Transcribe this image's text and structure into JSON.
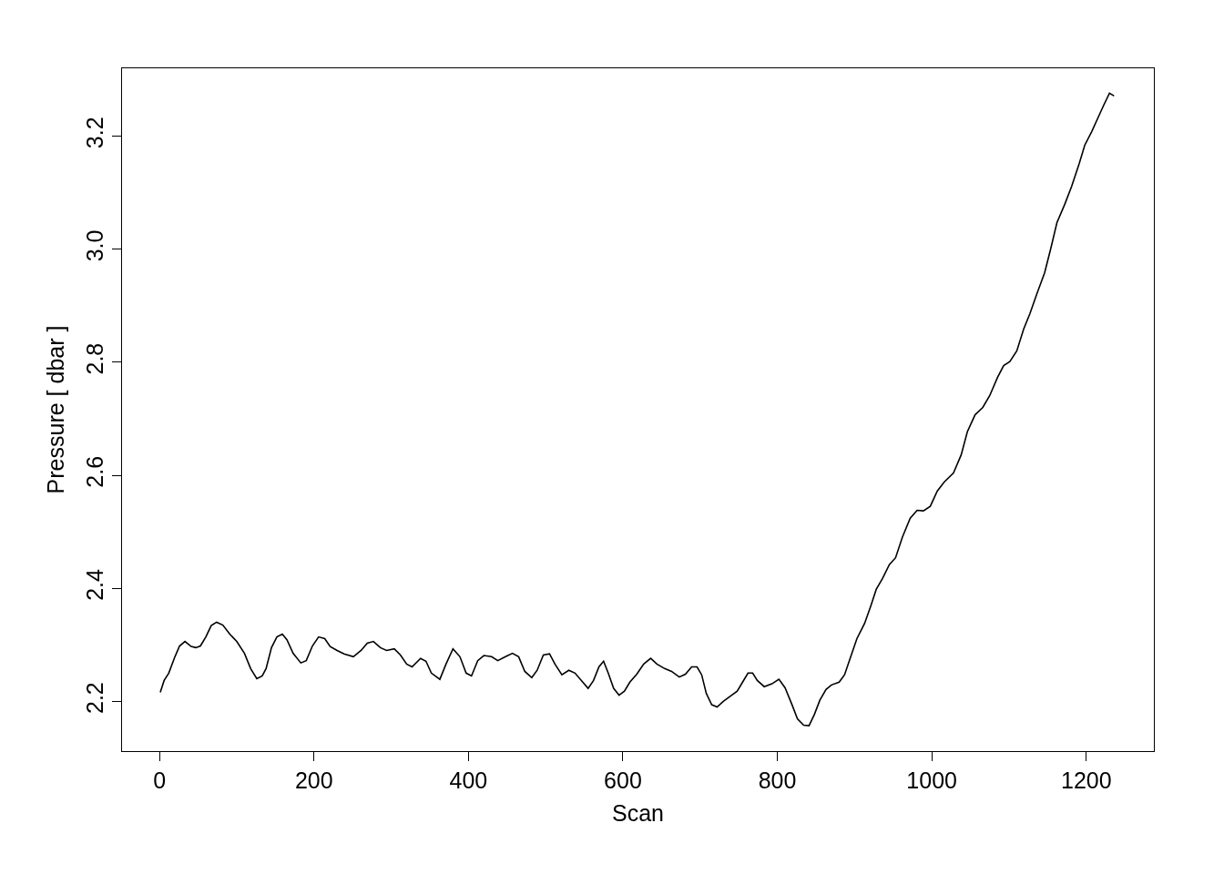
{
  "chart_data": {
    "type": "line",
    "xlabel": "Scan",
    "ylabel": "Pressure [ dbar ]",
    "xlim": [
      -48.5,
      1287.5
    ],
    "ylim": [
      2.112,
      3.32
    ],
    "xticks": [
      0,
      200,
      400,
      600,
      800,
      1000,
      1200
    ],
    "yticks": [
      2.2,
      2.4,
      2.6,
      2.8,
      {
        "value": 3,
        "label": "3.0"
      },
      3.2
    ],
    "marker": "none",
    "line_style": "solid",
    "series": [
      {
        "color": "#000000",
        "x": [
          1,
          6,
          12,
          20,
          26,
          33,
          41,
          47,
          53,
          60,
          67,
          74,
          82,
          91,
          100,
          110,
          118,
          126,
          133,
          138,
          145,
          152,
          159,
          165,
          173,
          183,
          190,
          198,
          206,
          214,
          221,
          230,
          239,
          251,
          261,
          269,
          277,
          286,
          294,
          304,
          312,
          320,
          327,
          338,
          345,
          352,
          363,
          371,
          380,
          389,
          397,
          404,
          412,
          420,
          430,
          438,
          448,
          457,
          465,
          473,
          482,
          489,
          497,
          505,
          512,
          521,
          530,
          538,
          548,
          555,
          562,
          569,
          575,
          581,
          588,
          595,
          602,
          609,
          618,
          627,
          636,
          644,
          654,
          663,
          673,
          681,
          689,
          696,
          702,
          708,
          715,
          722,
          730,
          740,
          748,
          755,
          762,
          768,
          774,
          783,
          793,
          802,
          810,
          819,
          826,
          834,
          841,
          848,
          855,
          863,
          870,
          880,
          887,
          895,
          903,
          913,
          921,
          928,
          936,
          945,
          953,
          962,
          972,
          981,
          989,
          998,
          1007,
          1016,
          1028,
          1038,
          1046,
          1056,
          1066,
          1075,
          1085,
          1093,
          1101,
          1110,
          1119,
          1127,
          1136,
          1146,
          1154,
          1162,
          1172,
          1181,
          1191,
          1198,
          1207,
          1216,
          1223,
          1230,
          1236
        ],
        "values": [
          2.216,
          2.237,
          2.25,
          2.279,
          2.298,
          2.306,
          2.297,
          2.295,
          2.298,
          2.314,
          2.334,
          2.34,
          2.335,
          2.319,
          2.306,
          2.285,
          2.258,
          2.24,
          2.245,
          2.258,
          2.295,
          2.314,
          2.319,
          2.309,
          2.285,
          2.268,
          2.272,
          2.298,
          2.314,
          2.311,
          2.297,
          2.29,
          2.284,
          2.279,
          2.29,
          2.303,
          2.306,
          2.295,
          2.29,
          2.293,
          2.282,
          2.266,
          2.261,
          2.276,
          2.271,
          2.25,
          2.239,
          2.266,
          2.293,
          2.279,
          2.25,
          2.245,
          2.272,
          2.281,
          2.279,
          2.272,
          2.279,
          2.285,
          2.279,
          2.253,
          2.242,
          2.255,
          2.282,
          2.284,
          2.266,
          2.247,
          2.255,
          2.25,
          2.234,
          2.223,
          2.237,
          2.261,
          2.271,
          2.25,
          2.223,
          2.211,
          2.218,
          2.234,
          2.248,
          2.266,
          2.276,
          2.266,
          2.258,
          2.253,
          2.243,
          2.248,
          2.261,
          2.261,
          2.247,
          2.214,
          2.194,
          2.19,
          2.2,
          2.21,
          2.218,
          2.234,
          2.25,
          2.25,
          2.237,
          2.226,
          2.231,
          2.239,
          2.224,
          2.194,
          2.169,
          2.158,
          2.157,
          2.177,
          2.202,
          2.221,
          2.229,
          2.234,
          2.247,
          2.279,
          2.311,
          2.338,
          2.369,
          2.398,
          2.417,
          2.442,
          2.454,
          2.491,
          2.524,
          2.538,
          2.537,
          2.545,
          2.572,
          2.588,
          2.604,
          2.636,
          2.677,
          2.707,
          2.72,
          2.741,
          2.773,
          2.794,
          2.801,
          2.82,
          2.859,
          2.886,
          2.921,
          2.958,
          3.001,
          3.047,
          3.079,
          3.111,
          3.152,
          3.184,
          3.208,
          3.235,
          3.256,
          3.276,
          3.271
        ]
      }
    ]
  }
}
